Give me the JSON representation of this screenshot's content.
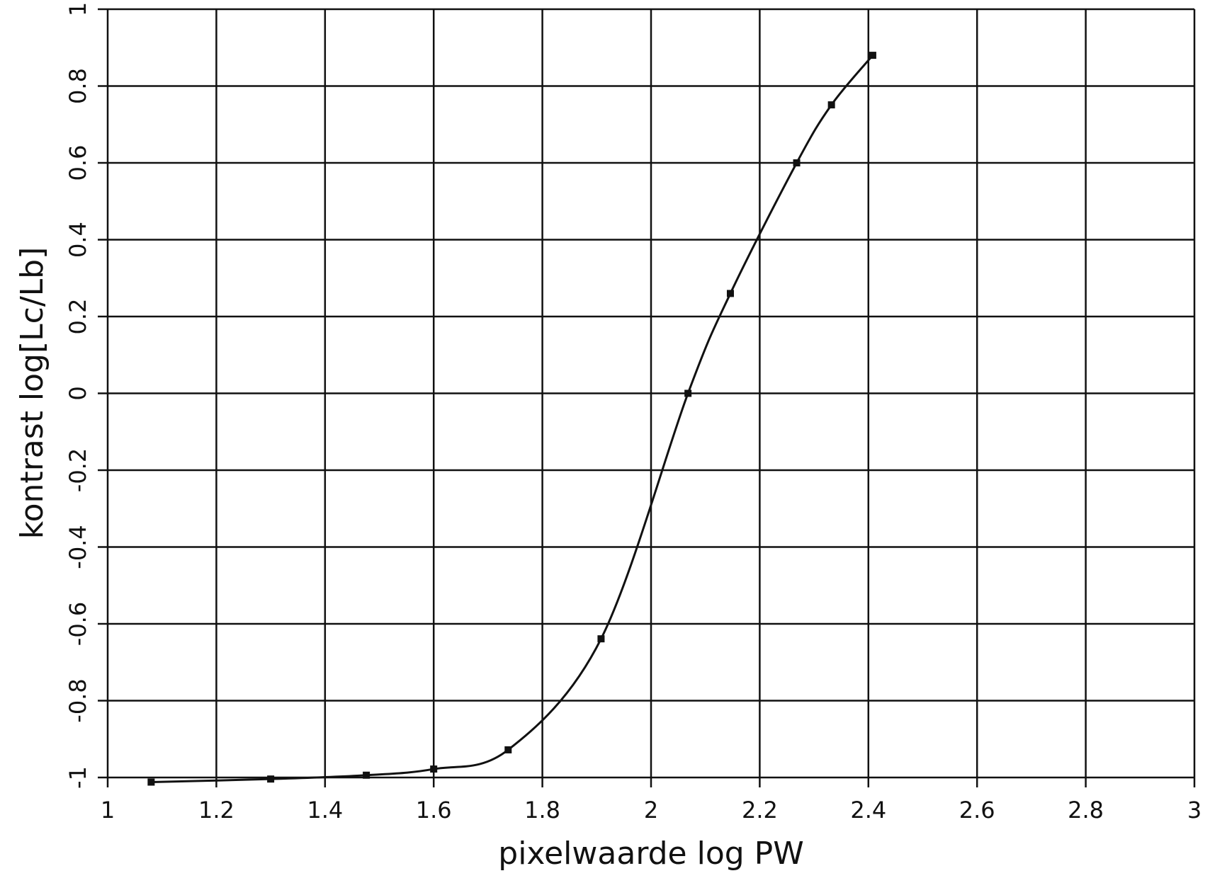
{
  "chart_data": {
    "type": "line",
    "x_label": "pixelwaarde log PW",
    "y_label": "kontrast log[Lc/Lb]",
    "x": [
      1.08,
      1.3,
      1.476,
      1.6,
      1.737,
      1.908,
      2.068,
      2.146,
      2.268,
      2.332,
      2.408
    ],
    "series": [
      {
        "color": "#111111",
        "values": [
          -1.012,
          -1.004,
          -0.994,
          -0.978,
          -0.928,
          -0.639,
          0.0,
          0.26,
          0.6,
          0.751,
          0.88
        ]
      }
    ],
    "xlim": [
      1,
      3
    ],
    "xticks": [
      1,
      1.2,
      1.4,
      1.6,
      1.8,
      2,
      2.2,
      2.4,
      2.6,
      2.8,
      3
    ],
    "ylim": [
      -1,
      1
    ],
    "yticks": [
      -1,
      -0.8,
      -0.6,
      -0.4,
      -0.2,
      0,
      0.2,
      0.4,
      0.6,
      0.8,
      1
    ],
    "grid": true,
    "markers": true
  }
}
